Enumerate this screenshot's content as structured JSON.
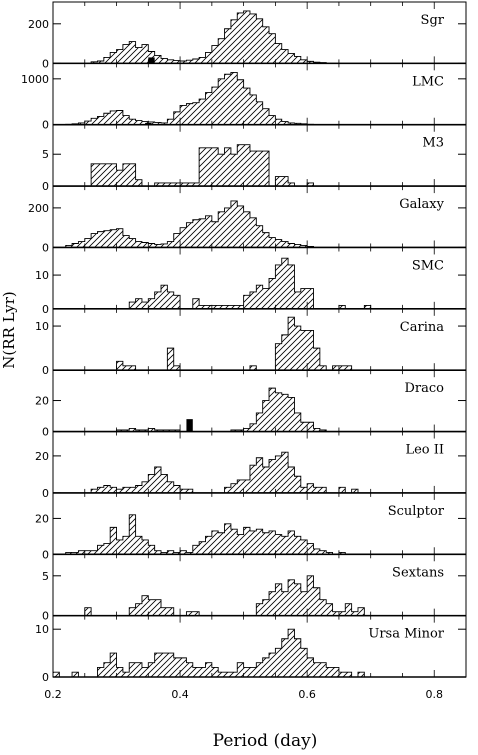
{
  "chart_data": {
    "type": "bar",
    "xlabel": "Period (day)",
    "ylabel": "N(RR Lyr)",
    "xlim": [
      0.2,
      0.85
    ],
    "xticks": [
      "0.2",
      "0.4",
      "0.6",
      "0.8"
    ],
    "panels": [
      {
        "name": "Sgr",
        "ylim": [
          0,
          290
        ],
        "yticks": [
          {
            "v": 0,
            "t": "0"
          },
          {
            "v": 200,
            "t": "200"
          }
        ],
        "bins_start": 0.26,
        "values": [
          8,
          12,
          30,
          55,
          70,
          95,
          110,
          80,
          95,
          60,
          40,
          25,
          18,
          14,
          12,
          16,
          22,
          30,
          55,
          90,
          125,
          175,
          220,
          255,
          265,
          250,
          225,
          185,
          150,
          100,
          70,
          50,
          35,
          18,
          10,
          6,
          4
        ],
        "black": [
          {
            "x": 0.35,
            "value": 30
          }
        ]
      },
      {
        "name": "LMC",
        "ylim": [
          0,
          1250
        ],
        "yticks": [
          {
            "v": 0,
            "t": "0"
          },
          {
            "v": 1000,
            "t": "1000"
          }
        ],
        "bins_start": 0.22,
        "values": [
          10,
          20,
          40,
          80,
          140,
          180,
          250,
          300,
          310,
          200,
          120,
          90,
          70,
          60,
          50,
          40,
          120,
          280,
          420,
          460,
          480,
          560,
          700,
          820,
          1000,
          1100,
          1140,
          980,
          800,
          650,
          500,
          350,
          200,
          120,
          70,
          40,
          30,
          20,
          10
        ],
        "black": [
          {
            "x": 0.345,
            "value": 40
          }
        ]
      },
      {
        "name": "M3",
        "ylim": [
          0,
          9
        ],
        "yticks": [
          {
            "v": 0,
            "t": "0"
          },
          {
            "v": 5,
            "t": "5"
          }
        ],
        "bins_start": 0.26,
        "values": [
          3.5,
          3.5,
          3.5,
          3.5,
          2.5,
          3.5,
          3.5,
          1,
          0,
          0,
          0.5,
          0.5,
          0.5,
          0.5,
          0.5,
          0.5,
          0.5,
          6,
          6,
          6,
          5,
          6,
          5,
          6.5,
          6.5,
          5.5,
          5.5,
          5.5,
          0,
          1.5,
          1.5,
          0.5,
          0,
          0,
          0.5
        ]
      },
      {
        "name": "Galaxy",
        "ylim": [
          0,
          290
        ],
        "yticks": [
          {
            "v": 0,
            "t": "0"
          },
          {
            "v": 200,
            "t": "200"
          }
        ],
        "bins_start": 0.22,
        "values": [
          10,
          20,
          30,
          45,
          70,
          80,
          85,
          90,
          95,
          60,
          45,
          30,
          25,
          20,
          15,
          18,
          30,
          70,
          100,
          125,
          140,
          145,
          160,
          130,
          180,
          200,
          235,
          210,
          180,
          150,
          110,
          75,
          50,
          40,
          30,
          20,
          15,
          10,
          5
        ]
      },
      {
        "name": "SMC",
        "ylim": [
          0,
          17
        ],
        "yticks": [
          {
            "v": 0,
            "t": "0"
          },
          {
            "v": 10,
            "t": "10"
          }
        ],
        "bins_start": 0.32,
        "values": [
          2,
          3,
          2,
          3,
          5,
          7,
          5,
          4,
          0,
          0,
          3,
          1,
          1,
          1,
          1,
          1,
          1,
          1,
          4,
          5,
          7,
          6,
          9,
          13,
          15,
          13,
          5,
          6,
          6,
          0,
          0,
          0,
          0,
          1,
          0,
          0,
          0,
          1
        ]
      },
      {
        "name": "Carina",
        "ylim": [
          0,
          13
        ],
        "yticks": [
          {
            "v": 0,
            "t": "0"
          },
          {
            "v": 10,
            "t": "10"
          }
        ],
        "bins_start": 0.3,
        "values": [
          2,
          1,
          1,
          0,
          0,
          0,
          0,
          0,
          5,
          1,
          0,
          0,
          0,
          0,
          0,
          0,
          0,
          0,
          0,
          0,
          0,
          1,
          0,
          0,
          0,
          6,
          8,
          12,
          10,
          9,
          9,
          5,
          1,
          0,
          1,
          1,
          1,
          0,
          0,
          0
        ]
      },
      {
        "name": "Draco",
        "ylim": [
          0,
          37
        ],
        "yticks": [
          {
            "v": 0,
            "t": "0"
          },
          {
            "v": 20,
            "t": "20"
          }
        ],
        "bins_start": 0.27,
        "values": [
          0,
          0,
          0,
          1,
          1,
          2,
          1,
          1,
          2,
          1,
          1,
          1,
          1,
          0,
          0,
          0,
          0,
          0,
          0,
          0,
          0,
          1,
          1,
          2,
          5,
          12,
          20,
          28,
          25,
          24,
          22,
          12,
          6,
          6,
          2,
          1,
          0,
          0
        ],
        "black": [
          {
            "x": 0.41,
            "value": 8
          }
        ]
      },
      {
        "name": "Leo II",
        "ylim": [
          0,
          31
        ],
        "yticks": [
          {
            "v": 0,
            "t": "0"
          },
          {
            "v": 20,
            "t": "20"
          }
        ],
        "bins_start": 0.26,
        "values": [
          2,
          3,
          4,
          3,
          2,
          3,
          3,
          4,
          6,
          10,
          14,
          10,
          6,
          4,
          2,
          2,
          0,
          0,
          0,
          0,
          0,
          3,
          5,
          7,
          7,
          15,
          19,
          14,
          18,
          20,
          22,
          14,
          9,
          3,
          5,
          3,
          3,
          0,
          0,
          3,
          0,
          2,
          0
        ]
      },
      {
        "name": "Sculptor",
        "ylim": [
          0,
          32
        ],
        "yticks": [
          {
            "v": 0,
            "t": "0"
          },
          {
            "v": 20,
            "t": "20"
          }
        ],
        "bins_start": 0.22,
        "values": [
          1,
          1,
          2,
          2,
          2,
          5,
          6,
          15,
          8,
          10,
          22,
          10,
          8,
          5,
          2,
          1,
          2,
          1,
          2,
          1,
          5,
          7,
          10,
          13,
          12,
          17,
          14,
          11,
          15,
          13,
          14,
          12,
          13,
          11,
          10,
          13,
          10,
          8,
          6,
          3,
          2,
          1,
          0,
          1
        ]
      },
      {
        "name": "Sextans",
        "ylim": [
          0,
          7.2
        ],
        "yticks": [
          {
            "v": 0,
            "t": "0"
          },
          {
            "v": 5,
            "t": "5"
          }
        ],
        "bins_start": 0.25,
        "values": [
          1,
          0,
          0,
          0,
          0,
          0,
          0,
          1,
          1.5,
          2.5,
          2,
          2,
          1,
          1,
          0,
          0,
          0.5,
          0.5,
          0,
          0,
          0,
          0,
          0,
          0,
          0,
          0,
          0,
          1.5,
          2,
          3,
          4,
          3,
          4.5,
          4,
          3,
          5,
          3.5,
          2,
          1.5,
          0.5,
          0.5,
          1.5,
          0.5,
          1
        ]
      },
      {
        "name": "Ursa Minor",
        "ylim": [
          0,
          12
        ],
        "yticks": [
          {
            "v": 0,
            "t": "0"
          },
          {
            "v": 10,
            "t": "10"
          }
        ],
        "bins_start": 0.2,
        "values": [
          1,
          0,
          0,
          1,
          0,
          0,
          0,
          2,
          3,
          5,
          2,
          1,
          3,
          3,
          2,
          3,
          5,
          5,
          5,
          4,
          4,
          3,
          2,
          2,
          3,
          2,
          1,
          1,
          1,
          3,
          2,
          2,
          3,
          4,
          5,
          6,
          8,
          10,
          8,
          6,
          4,
          3,
          3,
          2,
          2,
          1,
          1,
          0,
          1,
          0
        ]
      }
    ]
  }
}
